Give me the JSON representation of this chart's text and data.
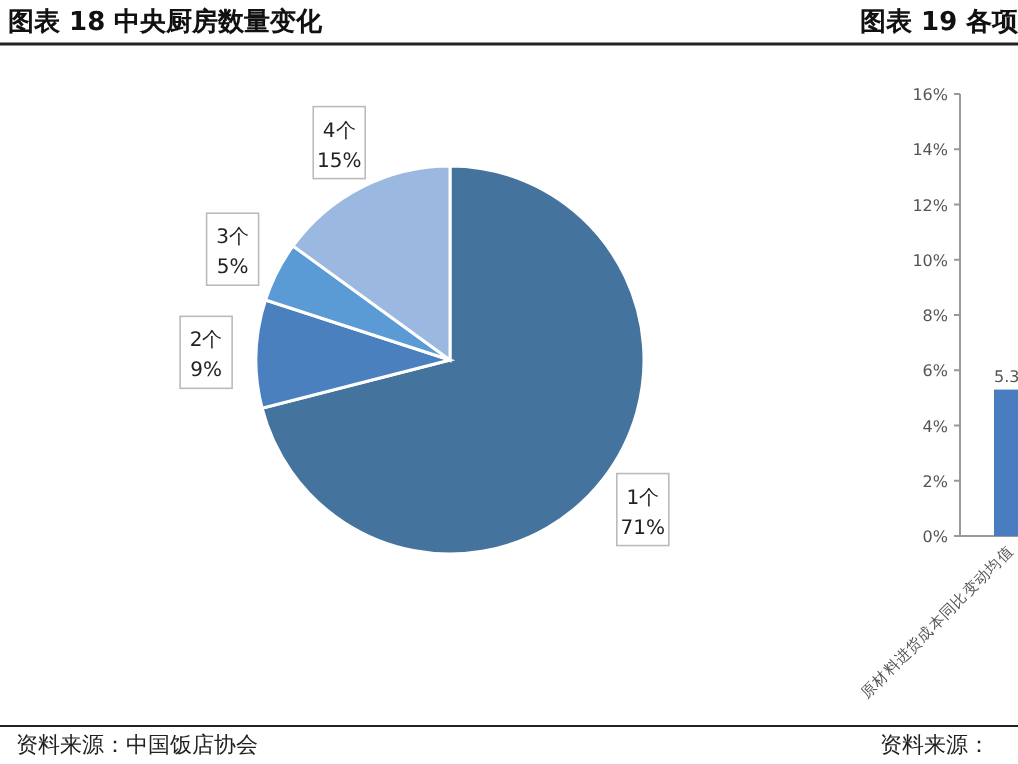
{
  "chart_data": [
    {
      "type": "pie",
      "title": "图表 18 中央厨房数量变化",
      "categories": [
        "1个",
        "2个",
        "3个",
        "4个"
      ],
      "values": [
        71,
        9,
        5,
        15
      ],
      "value_labels": [
        "71%",
        "9%",
        "5%",
        "15%"
      ],
      "colors": [
        "#44739e",
        "#4a80bd",
        "#5b9bd5",
        "#9bb9e0"
      ],
      "annotations": [
        "资料来源：中国饭店协会"
      ]
    },
    {
      "type": "bar",
      "title": "图表 19 各项",
      "categories": [
        "原材料进货成本同比变动均值"
      ],
      "values": [
        5.3
      ],
      "value_labels": [
        "5.3"
      ],
      "color": "#4a7dbf",
      "ylim": [
        0,
        16
      ],
      "yticks": [
        {
          "value": 0,
          "label": "0%"
        },
        {
          "value": 2,
          "label": "2%"
        },
        {
          "value": 4,
          "label": "4%"
        },
        {
          "value": 6,
          "label": "6%"
        },
        {
          "value": 8,
          "label": "8%"
        },
        {
          "value": 10,
          "label": "10%"
        },
        {
          "value": 12,
          "label": "12%"
        },
        {
          "value": 14,
          "label": "14%"
        },
        {
          "value": 16,
          "label": "16%"
        }
      ],
      "annotations": [
        "资料来源："
      ]
    }
  ]
}
